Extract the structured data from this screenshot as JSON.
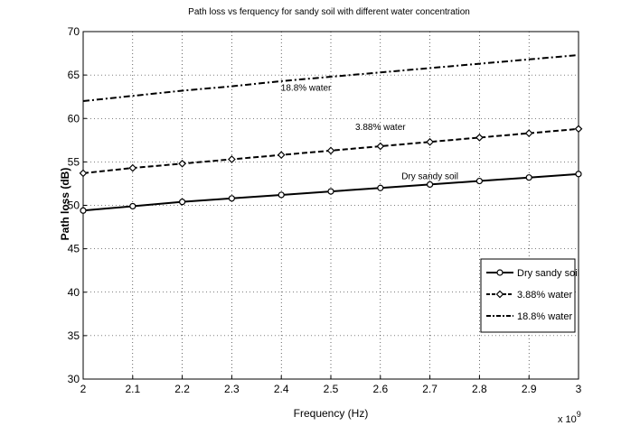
{
  "chart_data": {
    "type": "line",
    "title": "Path loss vs ferquency for sandy soil with different water concentration",
    "xlabel": "Frequency (Hz)",
    "ylabel": "Path loss (dB)",
    "x_multiplier_label": "x 10",
    "x_multiplier_exponent": "9",
    "xlim": [
      2,
      3
    ],
    "ylim": [
      30,
      70
    ],
    "grid": true,
    "legend_position": "lower-right",
    "x_ticks": [
      "2",
      "2.1",
      "2.2",
      "2.3",
      "2.4",
      "2.5",
      "2.6",
      "2.7",
      "2.8",
      "2.9",
      "3"
    ],
    "y_ticks": [
      "30",
      "35",
      "40",
      "45",
      "50",
      "55",
      "60",
      "65",
      "70"
    ],
    "x": [
      2.0,
      2.1,
      2.2,
      2.3,
      2.4,
      2.5,
      2.6,
      2.7,
      2.8,
      2.9,
      3.0
    ],
    "series": [
      {
        "name": "Dry sandy soil",
        "style": "solid",
        "marker": "circle",
        "values": [
          49.4,
          49.9,
          50.4,
          50.8,
          51.2,
          51.6,
          52.0,
          52.4,
          52.8,
          53.2,
          53.6
        ]
      },
      {
        "name": "3.88% water",
        "style": "dashed",
        "marker": "diamond",
        "values": [
          53.7,
          54.3,
          54.8,
          55.3,
          55.8,
          56.3,
          56.8,
          57.3,
          57.8,
          58.3,
          58.8
        ]
      },
      {
        "name": "18.8% water",
        "style": "dashdot",
        "marker": "none",
        "values": [
          62.0,
          62.6,
          63.2,
          63.7,
          64.3,
          64.8,
          65.3,
          65.8,
          66.3,
          66.8,
          67.3
        ]
      }
    ],
    "annotations": [
      {
        "text": "18.8% water",
        "x": 2.45,
        "y": 63.2
      },
      {
        "text": "3.88% water",
        "x": 2.6,
        "y": 58.7
      },
      {
        "text": "Dry sandy soil",
        "x": 2.7,
        "y": 53.0
      }
    ]
  }
}
